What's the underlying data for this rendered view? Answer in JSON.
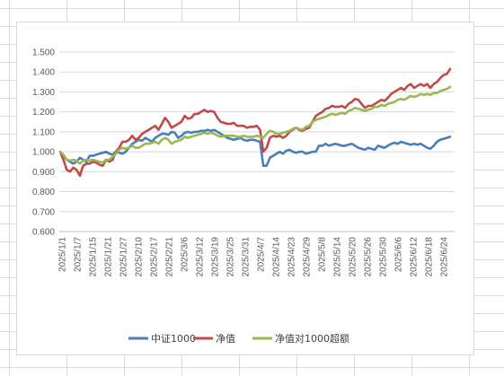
{
  "chart_data": {
    "type": "line",
    "title": "",
    "xlabel": "",
    "ylabel": "",
    "ylim": [
      0.6,
      1.5
    ],
    "yticks": [
      "0.600",
      "0.700",
      "0.800",
      "0.900",
      "1.000",
      "1.100",
      "1.200",
      "1.300",
      "1.400",
      "1.500"
    ],
    "grid": true,
    "legend_position": "bottom",
    "x_tick_labels": [
      "2025/1/1",
      "2025/1/7",
      "2025/1/15",
      "2025/1/21",
      "2025/1/27",
      "2025/2/10",
      "2025/2/17",
      "2025/2/21",
      "2025/3/6",
      "2025/3/12",
      "2025/3/19",
      "2025/3/25",
      "2025/3/31",
      "2025/4/7",
      "2025/4/14",
      "2025/4/23",
      "2025/4/29",
      "2025/5/8",
      "2025/5/14",
      "2025/5/20",
      "2025/5/26",
      "2025/5/30",
      "2025/6/6",
      "2025/6/12",
      "2025/6/18",
      "2025/6/24"
    ],
    "series": [
      {
        "name": "中证1000",
        "color": "#4a7ebb",
        "values": [
          1.0,
          0.98,
          0.96,
          0.95,
          0.94,
          0.95,
          0.97,
          0.96,
          0.95,
          0.98,
          0.98,
          0.985,
          0.99,
          0.995,
          1.0,
          0.99,
          0.985,
          1.0,
          0.995,
          0.99,
          1.0,
          1.02,
          1.04,
          1.05,
          1.06,
          1.055,
          1.07,
          1.06,
          1.05,
          1.07,
          1.08,
          1.09,
          1.09,
          1.085,
          1.1,
          1.095,
          1.07,
          1.08,
          1.095,
          1.1,
          1.095,
          1.1,
          1.1,
          1.105,
          1.105,
          1.11,
          1.105,
          1.11,
          1.1,
          1.09,
          1.08,
          1.07,
          1.065,
          1.06,
          1.065,
          1.07,
          1.06,
          1.055,
          1.06,
          1.06,
          1.055,
          1.05,
          0.93,
          0.93,
          0.97,
          0.98,
          0.99,
          1.0,
          0.99,
          1.005,
          1.01,
          1.0,
          0.995,
          1.0,
          1.0,
          0.99,
          0.995,
          1.0,
          1.0,
          1.03,
          1.03,
          1.04,
          1.03,
          1.035,
          1.04,
          1.035,
          1.03,
          1.03,
          1.035,
          1.04,
          1.03,
          1.02,
          1.015,
          1.01,
          1.02,
          1.015,
          1.01,
          1.03,
          1.025,
          1.02,
          1.03,
          1.04,
          1.045,
          1.04,
          1.05,
          1.045,
          1.04,
          1.035,
          1.04,
          1.035,
          1.04,
          1.03,
          1.02,
          1.015,
          1.03,
          1.05,
          1.06,
          1.065,
          1.07,
          1.075
        ],
        "print_order": 0
      },
      {
        "name": "净值",
        "color": "#be4b48",
        "values": [
          1.0,
          0.96,
          0.91,
          0.9,
          0.92,
          0.91,
          0.88,
          0.93,
          0.94,
          0.94,
          0.95,
          0.945,
          0.935,
          0.93,
          0.96,
          0.95,
          0.96,
          1.0,
          1.02,
          1.05,
          1.05,
          1.06,
          1.08,
          1.06,
          1.07,
          1.09,
          1.1,
          1.11,
          1.12,
          1.13,
          1.11,
          1.14,
          1.17,
          1.15,
          1.12,
          1.13,
          1.14,
          1.15,
          1.18,
          1.165,
          1.17,
          1.19,
          1.19,
          1.2,
          1.21,
          1.2,
          1.205,
          1.2,
          1.17,
          1.15,
          1.145,
          1.14,
          1.14,
          1.145,
          1.13,
          1.13,
          1.13,
          1.12,
          1.125,
          1.125,
          1.13,
          1.11,
          1.0,
          1.02,
          1.07,
          1.08,
          1.075,
          1.08,
          1.07,
          1.08,
          1.1,
          1.11,
          1.12,
          1.11,
          1.105,
          1.115,
          1.12,
          1.15,
          1.18,
          1.19,
          1.2,
          1.215,
          1.22,
          1.23,
          1.225,
          1.225,
          1.23,
          1.22,
          1.24,
          1.25,
          1.265,
          1.26,
          1.24,
          1.22,
          1.23,
          1.23,
          1.24,
          1.25,
          1.26,
          1.255,
          1.27,
          1.29,
          1.3,
          1.31,
          1.32,
          1.31,
          1.33,
          1.34,
          1.32,
          1.33,
          1.34,
          1.33,
          1.34,
          1.32,
          1.34,
          1.35,
          1.37,
          1.385,
          1.39,
          1.415
        ],
        "print_order": 1
      },
      {
        "name": "净值对1000超额",
        "color": "#98b954",
        "values": [
          1.0,
          0.985,
          0.96,
          0.955,
          0.96,
          0.955,
          0.94,
          0.955,
          0.96,
          0.955,
          0.96,
          0.955,
          0.95,
          0.945,
          0.96,
          0.96,
          0.975,
          0.99,
          1.01,
          1.02,
          1.015,
          1.02,
          1.03,
          1.02,
          1.02,
          1.03,
          1.04,
          1.04,
          1.045,
          1.05,
          1.04,
          1.06,
          1.07,
          1.06,
          1.04,
          1.05,
          1.055,
          1.06,
          1.075,
          1.07,
          1.075,
          1.08,
          1.085,
          1.09,
          1.095,
          1.09,
          1.095,
          1.09,
          1.08,
          1.075,
          1.08,
          1.08,
          1.08,
          1.08,
          1.075,
          1.075,
          1.08,
          1.075,
          1.075,
          1.075,
          1.08,
          1.075,
          1.07,
          1.09,
          1.105,
          1.1,
          1.09,
          1.09,
          1.095,
          1.1,
          1.105,
          1.115,
          1.12,
          1.115,
          1.11,
          1.125,
          1.13,
          1.15,
          1.16,
          1.165,
          1.17,
          1.175,
          1.185,
          1.19,
          1.185,
          1.19,
          1.195,
          1.19,
          1.205,
          1.21,
          1.22,
          1.215,
          1.21,
          1.205,
          1.21,
          1.215,
          1.225,
          1.225,
          1.235,
          1.23,
          1.24,
          1.245,
          1.25,
          1.26,
          1.265,
          1.26,
          1.27,
          1.28,
          1.275,
          1.28,
          1.29,
          1.285,
          1.29,
          1.285,
          1.295,
          1.295,
          1.305,
          1.31,
          1.315,
          1.325
        ],
        "print_order": 2
      }
    ]
  }
}
